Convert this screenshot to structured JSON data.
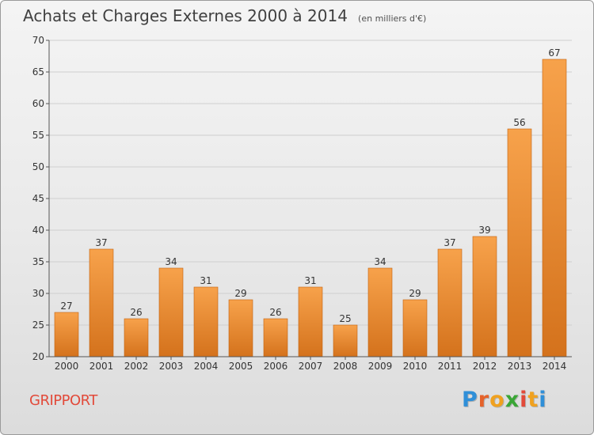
{
  "header": {
    "title": "Achats et Charges Externes 2000 à 2014",
    "unit": "(en milliers d'€)"
  },
  "footer": {
    "place": "GRIPPORT",
    "logo_letters": [
      "P",
      "r",
      "o",
      "x",
      "i",
      "t",
      "i"
    ],
    "logo_colors": [
      "#2f8fd8",
      "#e5622a",
      "#f0a11f",
      "#3aa636",
      "#e24a3a",
      "#f0a11f",
      "#2f8fd8"
    ]
  },
  "colors": {
    "bar_top": "#f7a24b",
    "bar_bottom": "#d4721c",
    "bar_edge": "#c2620f",
    "grid": "#cfcfcf",
    "axis": "#555555"
  },
  "chart_data": {
    "type": "bar",
    "categories": [
      "2000",
      "2001",
      "2002",
      "2003",
      "2004",
      "2005",
      "2006",
      "2007",
      "2008",
      "2009",
      "2010",
      "2011",
      "2012",
      "2013",
      "2014"
    ],
    "values": [
      27,
      37,
      26,
      34,
      31,
      29,
      26,
      31,
      25,
      34,
      29,
      37,
      39,
      56,
      67
    ],
    "title": "Achats et Charges Externes 2000 à 2014",
    "ylim": [
      20,
      70
    ],
    "yticks": [
      20,
      25,
      30,
      35,
      40,
      45,
      50,
      55,
      60,
      65,
      70
    ],
    "grid": true,
    "data_labels": true
  }
}
